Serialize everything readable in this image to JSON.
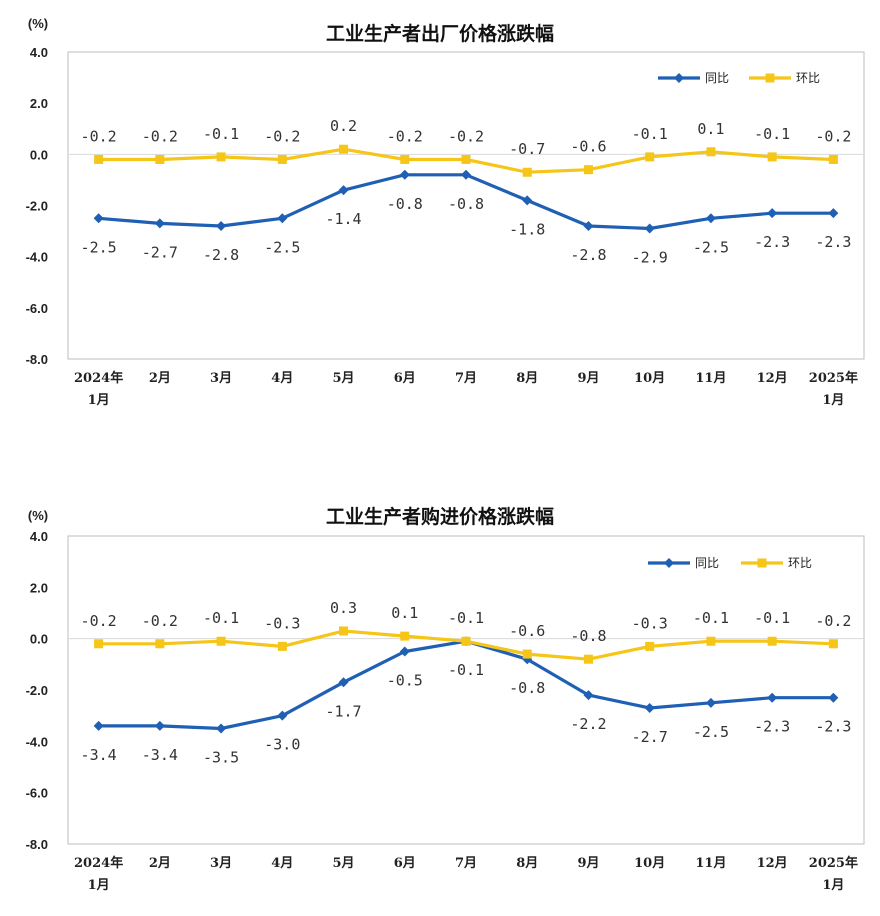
{
  "chart_data": [
    {
      "type": "line",
      "title": "工业生产者出厂价格涨跌幅",
      "unit": "(%)",
      "ylim": [
        -8,
        4
      ],
      "yticks": [
        "4.0",
        "2.0",
        "0.0",
        "-2.0",
        "-4.0",
        "-6.0",
        "-8.0"
      ],
      "categories": [
        [
          "2024年",
          "1月"
        ],
        [
          "2月"
        ],
        [
          "3月"
        ],
        [
          "4月"
        ],
        [
          "5月"
        ],
        [
          "6月"
        ],
        [
          "7月"
        ],
        [
          "8月"
        ],
        [
          "9月"
        ],
        [
          "10月"
        ],
        [
          "11月"
        ],
        [
          "12月"
        ],
        [
          "2025年",
          "1月"
        ]
      ],
      "legend_position": "top-right",
      "series": [
        {
          "name": "同比",
          "color": "#1f5fb4",
          "marker": "diamond",
          "values": [
            -2.5,
            -2.7,
            -2.8,
            -2.5,
            -1.4,
            -0.8,
            -0.8,
            -1.8,
            -2.8,
            -2.9,
            -2.5,
            -2.3,
            -2.3
          ],
          "labels": [
            "-2.5",
            "-2.7",
            "-2.8",
            "-2.5",
            "-1.4",
            "-0.8",
            "-0.8",
            "-1.8",
            "-2.8",
            "-2.9",
            "-2.5",
            "-2.3",
            "-2.3"
          ]
        },
        {
          "name": "环比",
          "color": "#f5c518",
          "marker": "square",
          "values": [
            -0.2,
            -0.2,
            -0.1,
            -0.2,
            0.2,
            -0.2,
            -0.2,
            -0.7,
            -0.6,
            -0.1,
            0.1,
            -0.1,
            -0.2
          ],
          "labels": [
            "-0.2",
            "-0.2",
            "-0.1",
            "-0.2",
            "0.2",
            "-0.2",
            "-0.2",
            "-0.7",
            "-0.6",
            "-0.1",
            "0.1",
            "-0.1",
            "-0.2"
          ]
        }
      ]
    },
    {
      "type": "line",
      "title": "工业生产者购进价格涨跌幅",
      "unit": "(%)",
      "ylim": [
        -8,
        4
      ],
      "yticks": [
        "4.0",
        "2.0",
        "0.0",
        "-2.0",
        "-4.0",
        "-6.0",
        "-8.0"
      ],
      "categories": [
        [
          "2024年",
          "1月"
        ],
        [
          "2月"
        ],
        [
          "3月"
        ],
        [
          "4月"
        ],
        [
          "5月"
        ],
        [
          "6月"
        ],
        [
          "7月"
        ],
        [
          "8月"
        ],
        [
          "9月"
        ],
        [
          "10月"
        ],
        [
          "11月"
        ],
        [
          "12月"
        ],
        [
          "2025年",
          "1月"
        ]
      ],
      "legend_position": "top-right",
      "series": [
        {
          "name": "同比",
          "color": "#1f5fb4",
          "marker": "diamond",
          "values": [
            -3.4,
            -3.4,
            -3.5,
            -3.0,
            -1.7,
            -0.5,
            -0.1,
            -0.8,
            -2.2,
            -2.7,
            -2.5,
            -2.3,
            -2.3
          ],
          "labels": [
            "-3.4",
            "-3.4",
            "-3.5",
            "-3.0",
            "-1.7",
            "-0.5",
            "-0.1",
            "-0.8",
            "-2.2",
            "-2.7",
            "-2.5",
            "-2.3",
            "-2.3"
          ]
        },
        {
          "name": "环比",
          "color": "#f5c518",
          "marker": "square",
          "values": [
            -0.2,
            -0.2,
            -0.1,
            -0.3,
            0.3,
            0.1,
            -0.1,
            -0.6,
            -0.8,
            -0.3,
            -0.1,
            -0.1,
            -0.2
          ],
          "labels": [
            "-0.2",
            "-0.2",
            "-0.1",
            "-0.3",
            "0.3",
            "0.1",
            "-0.1",
            "-0.6",
            "-0.8",
            "-0.3",
            "-0.1",
            "-0.1",
            "-0.2"
          ]
        }
      ]
    }
  ]
}
